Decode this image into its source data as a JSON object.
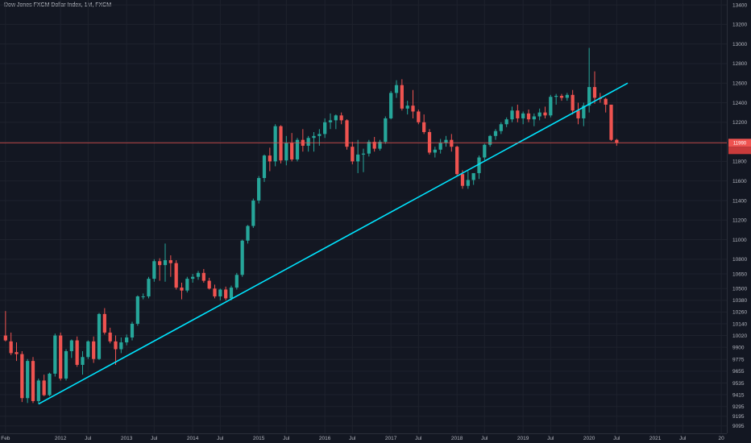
{
  "header": {
    "title": "Dow Jones FXCM Dollar Index, 1M, FXCM"
  },
  "colors": {
    "background": "#131722",
    "grid": "#1e222d",
    "up": "#26a69a",
    "down": "#ef5350",
    "trendline": "#00e5ff",
    "price_line": "#ef5350",
    "axis_text": "#b2b5be"
  },
  "chart_data": {
    "type": "candlestick",
    "title": "Dow Jones FXCM Dollar Index, 1M, FXCM",
    "xlabel": "",
    "ylabel": "",
    "x_ticks": [
      {
        "label": "Feb",
        "index": 0
      },
      {
        "label": "2012",
        "index": 10
      },
      {
        "label": "Jul",
        "index": 15
      },
      {
        "label": "2013",
        "index": 22
      },
      {
        "label": "Jul",
        "index": 27
      },
      {
        "label": "2014",
        "index": 34
      },
      {
        "label": "Jul",
        "index": 39
      },
      {
        "label": "2015",
        "index": 46
      },
      {
        "label": "Jul",
        "index": 51
      },
      {
        "label": "2016",
        "index": 58
      },
      {
        "label": "Jul",
        "index": 63
      },
      {
        "label": "2017",
        "index": 70
      },
      {
        "label": "Jul",
        "index": 75
      },
      {
        "label": "2018",
        "index": 82
      },
      {
        "label": "Jul",
        "index": 87
      },
      {
        "label": "2019",
        "index": 94
      },
      {
        "label": "Jul",
        "index": 99
      },
      {
        "label": "2020",
        "index": 106
      },
      {
        "label": "Jul",
        "index": 111
      },
      {
        "label": "2021",
        "index": 118
      },
      {
        "label": "Jul",
        "index": 123
      },
      {
        "label": "20",
        "index": 130
      }
    ],
    "y_ticks": [
      9095,
      9195,
      9295,
      9415,
      9535,
      9655,
      9775,
      9900,
      10020,
      10140,
      10260,
      10380,
      10500,
      10650,
      10800,
      11000,
      11200,
      11400,
      11600,
      11800,
      12000,
      12200,
      12400,
      12600,
      12800,
      13000,
      13200,
      13400
    ],
    "ylim": [
      9020,
      13450
    ],
    "xlim": [
      -1,
      131
    ],
    "grid": true,
    "last_price": 11990,
    "trendline": [
      {
        "x": 6,
        "y": 9320
      },
      {
        "x": 113,
        "y": 12600
      }
    ],
    "candles": [
      {
        "o": 10020,
        "h": 10270,
        "l": 9960,
        "c": 9970
      },
      {
        "o": 9960,
        "h": 10050,
        "l": 9820,
        "c": 9840
      },
      {
        "o": 9850,
        "h": 9950,
        "l": 9760,
        "c": 9830
      },
      {
        "o": 9830,
        "h": 9860,
        "l": 9340,
        "c": 9380
      },
      {
        "o": 9380,
        "h": 9780,
        "l": 9330,
        "c": 9760
      },
      {
        "o": 9760,
        "h": 9800,
        "l": 9330,
        "c": 9350
      },
      {
        "o": 9350,
        "h": 9580,
        "l": 9320,
        "c": 9560
      },
      {
        "o": 9560,
        "h": 9620,
        "l": 9400,
        "c": 9410
      },
      {
        "o": 9410,
        "h": 9640,
        "l": 9400,
        "c": 9630
      },
      {
        "o": 9630,
        "h": 10040,
        "l": 9600,
        "c": 10020
      },
      {
        "o": 10020,
        "h": 10050,
        "l": 9560,
        "c": 9580
      },
      {
        "o": 9580,
        "h": 9880,
        "l": 9560,
        "c": 9860
      },
      {
        "o": 9860,
        "h": 9980,
        "l": 9790,
        "c": 9970
      },
      {
        "o": 9970,
        "h": 10010,
        "l": 9700,
        "c": 9720
      },
      {
        "o": 9720,
        "h": 9860,
        "l": 9620,
        "c": 9800
      },
      {
        "o": 9800,
        "h": 9970,
        "l": 9780,
        "c": 9960
      },
      {
        "o": 9960,
        "h": 10010,
        "l": 9740,
        "c": 9780
      },
      {
        "o": 9780,
        "h": 10250,
        "l": 9770,
        "c": 10240
      },
      {
        "o": 10240,
        "h": 10300,
        "l": 10030,
        "c": 10050
      },
      {
        "o": 10050,
        "h": 10100,
        "l": 9940,
        "c": 9960
      },
      {
        "o": 9960,
        "h": 10020,
        "l": 9720,
        "c": 9880
      },
      {
        "o": 9880,
        "h": 10000,
        "l": 9840,
        "c": 9950
      },
      {
        "o": 9950,
        "h": 10030,
        "l": 9920,
        "c": 10000
      },
      {
        "o": 10000,
        "h": 10160,
        "l": 9970,
        "c": 10140
      },
      {
        "o": 10140,
        "h": 10430,
        "l": 10120,
        "c": 10420
      },
      {
        "o": 10420,
        "h": 10450,
        "l": 10390,
        "c": 10420
      },
      {
        "o": 10420,
        "h": 10620,
        "l": 10400,
        "c": 10600
      },
      {
        "o": 10600,
        "h": 10800,
        "l": 10570,
        "c": 10780
      },
      {
        "o": 10780,
        "h": 10810,
        "l": 10580,
        "c": 10740
      },
      {
        "o": 10740,
        "h": 10960,
        "l": 10570,
        "c": 10790
      },
      {
        "o": 10790,
        "h": 10840,
        "l": 10620,
        "c": 10760
      },
      {
        "o": 10760,
        "h": 10790,
        "l": 10490,
        "c": 10510
      },
      {
        "o": 10510,
        "h": 10560,
        "l": 10390,
        "c": 10480
      },
      {
        "o": 10480,
        "h": 10620,
        "l": 10460,
        "c": 10600
      },
      {
        "o": 10600,
        "h": 10650,
        "l": 10560,
        "c": 10620
      },
      {
        "o": 10620,
        "h": 10680,
        "l": 10590,
        "c": 10660
      },
      {
        "o": 10660,
        "h": 10700,
        "l": 10560,
        "c": 10580
      },
      {
        "o": 10580,
        "h": 10610,
        "l": 10490,
        "c": 10500
      },
      {
        "o": 10500,
        "h": 10540,
        "l": 10400,
        "c": 10420
      },
      {
        "o": 10420,
        "h": 10500,
        "l": 10380,
        "c": 10490
      },
      {
        "o": 10490,
        "h": 10520,
        "l": 10380,
        "c": 10400
      },
      {
        "o": 10400,
        "h": 10530,
        "l": 10380,
        "c": 10510
      },
      {
        "o": 10510,
        "h": 10660,
        "l": 10490,
        "c": 10640
      },
      {
        "o": 10640,
        "h": 11000,
        "l": 10620,
        "c": 10990
      },
      {
        "o": 10990,
        "h": 11150,
        "l": 10960,
        "c": 11140
      },
      {
        "o": 11140,
        "h": 11420,
        "l": 11120,
        "c": 11400
      },
      {
        "o": 11400,
        "h": 11650,
        "l": 11370,
        "c": 11630
      },
      {
        "o": 11630,
        "h": 11870,
        "l": 11590,
        "c": 11860
      },
      {
        "o": 11860,
        "h": 11940,
        "l": 11700,
        "c": 11800
      },
      {
        "o": 11800,
        "h": 12180,
        "l": 11750,
        "c": 12160
      },
      {
        "o": 12160,
        "h": 12170,
        "l": 11780,
        "c": 11810
      },
      {
        "o": 11810,
        "h": 12060,
        "l": 11760,
        "c": 11990
      },
      {
        "o": 11990,
        "h": 12090,
        "l": 11800,
        "c": 11820
      },
      {
        "o": 11820,
        "h": 12040,
        "l": 11800,
        "c": 12020
      },
      {
        "o": 12020,
        "h": 12130,
        "l": 11900,
        "c": 11960
      },
      {
        "o": 11960,
        "h": 12060,
        "l": 11900,
        "c": 12040
      },
      {
        "o": 12040,
        "h": 12100,
        "l": 11900,
        "c": 12060
      },
      {
        "o": 12060,
        "h": 12130,
        "l": 11960,
        "c": 12080
      },
      {
        "o": 12080,
        "h": 12240,
        "l": 12040,
        "c": 12200
      },
      {
        "o": 12200,
        "h": 12290,
        "l": 12130,
        "c": 12220
      },
      {
        "o": 12220,
        "h": 12280,
        "l": 12130,
        "c": 12270
      },
      {
        "o": 12270,
        "h": 12300,
        "l": 12180,
        "c": 12220
      },
      {
        "o": 12220,
        "h": 12230,
        "l": 11920,
        "c": 11950
      },
      {
        "o": 11950,
        "h": 12000,
        "l": 11770,
        "c": 11800
      },
      {
        "o": 11800,
        "h": 12020,
        "l": 11680,
        "c": 11870
      },
      {
        "o": 11870,
        "h": 11930,
        "l": 11690,
        "c": 11880
      },
      {
        "o": 11880,
        "h": 12020,
        "l": 11850,
        "c": 12000
      },
      {
        "o": 12000,
        "h": 12050,
        "l": 11900,
        "c": 11930
      },
      {
        "o": 11930,
        "h": 12020,
        "l": 11910,
        "c": 12000
      },
      {
        "o": 12000,
        "h": 12260,
        "l": 11980,
        "c": 12240
      },
      {
        "o": 12240,
        "h": 12520,
        "l": 12230,
        "c": 12500
      },
      {
        "o": 12500,
        "h": 12630,
        "l": 12450,
        "c": 12580
      },
      {
        "o": 12580,
        "h": 12640,
        "l": 12320,
        "c": 12340
      },
      {
        "o": 12340,
        "h": 12420,
        "l": 12280,
        "c": 12370
      },
      {
        "o": 12370,
        "h": 12530,
        "l": 12240,
        "c": 12310
      },
      {
        "o": 12310,
        "h": 12330,
        "l": 12180,
        "c": 12200
      },
      {
        "o": 12200,
        "h": 12280,
        "l": 12080,
        "c": 12100
      },
      {
        "o": 12100,
        "h": 12130,
        "l": 11870,
        "c": 11890
      },
      {
        "o": 11890,
        "h": 11950,
        "l": 11840,
        "c": 11920
      },
      {
        "o": 11920,
        "h": 12030,
        "l": 11880,
        "c": 11990
      },
      {
        "o": 11990,
        "h": 12060,
        "l": 11950,
        "c": 12020
      },
      {
        "o": 12020,
        "h": 12080,
        "l": 11900,
        "c": 11950
      },
      {
        "o": 11950,
        "h": 11960,
        "l": 11650,
        "c": 11670
      },
      {
        "o": 11670,
        "h": 11710,
        "l": 11520,
        "c": 11550
      },
      {
        "o": 11550,
        "h": 11700,
        "l": 11520,
        "c": 11610
      },
      {
        "o": 11610,
        "h": 11680,
        "l": 11560,
        "c": 11680
      },
      {
        "o": 11680,
        "h": 11860,
        "l": 11620,
        "c": 11840
      },
      {
        "o": 11840,
        "h": 11980,
        "l": 11810,
        "c": 11970
      },
      {
        "o": 11970,
        "h": 12070,
        "l": 11950,
        "c": 12060
      },
      {
        "o": 12060,
        "h": 12130,
        "l": 12020,
        "c": 12110
      },
      {
        "o": 12110,
        "h": 12200,
        "l": 12080,
        "c": 12180
      },
      {
        "o": 12180,
        "h": 12250,
        "l": 12150,
        "c": 12230
      },
      {
        "o": 12230,
        "h": 12360,
        "l": 12200,
        "c": 12320
      },
      {
        "o": 12320,
        "h": 12380,
        "l": 12200,
        "c": 12240
      },
      {
        "o": 12240,
        "h": 12310,
        "l": 12180,
        "c": 12290
      },
      {
        "o": 12290,
        "h": 12330,
        "l": 12200,
        "c": 12230
      },
      {
        "o": 12230,
        "h": 12290,
        "l": 12160,
        "c": 12260
      },
      {
        "o": 12260,
        "h": 12340,
        "l": 12220,
        "c": 12300
      },
      {
        "o": 12300,
        "h": 12360,
        "l": 12240,
        "c": 12270
      },
      {
        "o": 12270,
        "h": 12480,
        "l": 12250,
        "c": 12460
      },
      {
        "o": 12460,
        "h": 12490,
        "l": 12380,
        "c": 12470
      },
      {
        "o": 12470,
        "h": 12490,
        "l": 12420,
        "c": 12450
      },
      {
        "o": 12450,
        "h": 12500,
        "l": 12420,
        "c": 12480
      },
      {
        "o": 12480,
        "h": 12530,
        "l": 12280,
        "c": 12320
      },
      {
        "o": 12320,
        "h": 12400,
        "l": 12180,
        "c": 12240
      },
      {
        "o": 12240,
        "h": 12400,
        "l": 12160,
        "c": 12370
      },
      {
        "o": 12370,
        "h": 12960,
        "l": 12300,
        "c": 12560
      },
      {
        "o": 12560,
        "h": 12720,
        "l": 12390,
        "c": 12450
      },
      {
        "o": 12450,
        "h": 12500,
        "l": 12400,
        "c": 12440
      },
      {
        "o": 12440,
        "h": 12450,
        "l": 12300,
        "c": 12380
      },
      {
        "o": 12380,
        "h": 12380,
        "l": 12010,
        "c": 12020
      },
      {
        "o": 12020,
        "h": 12030,
        "l": 11960,
        "c": 11990
      }
    ]
  }
}
